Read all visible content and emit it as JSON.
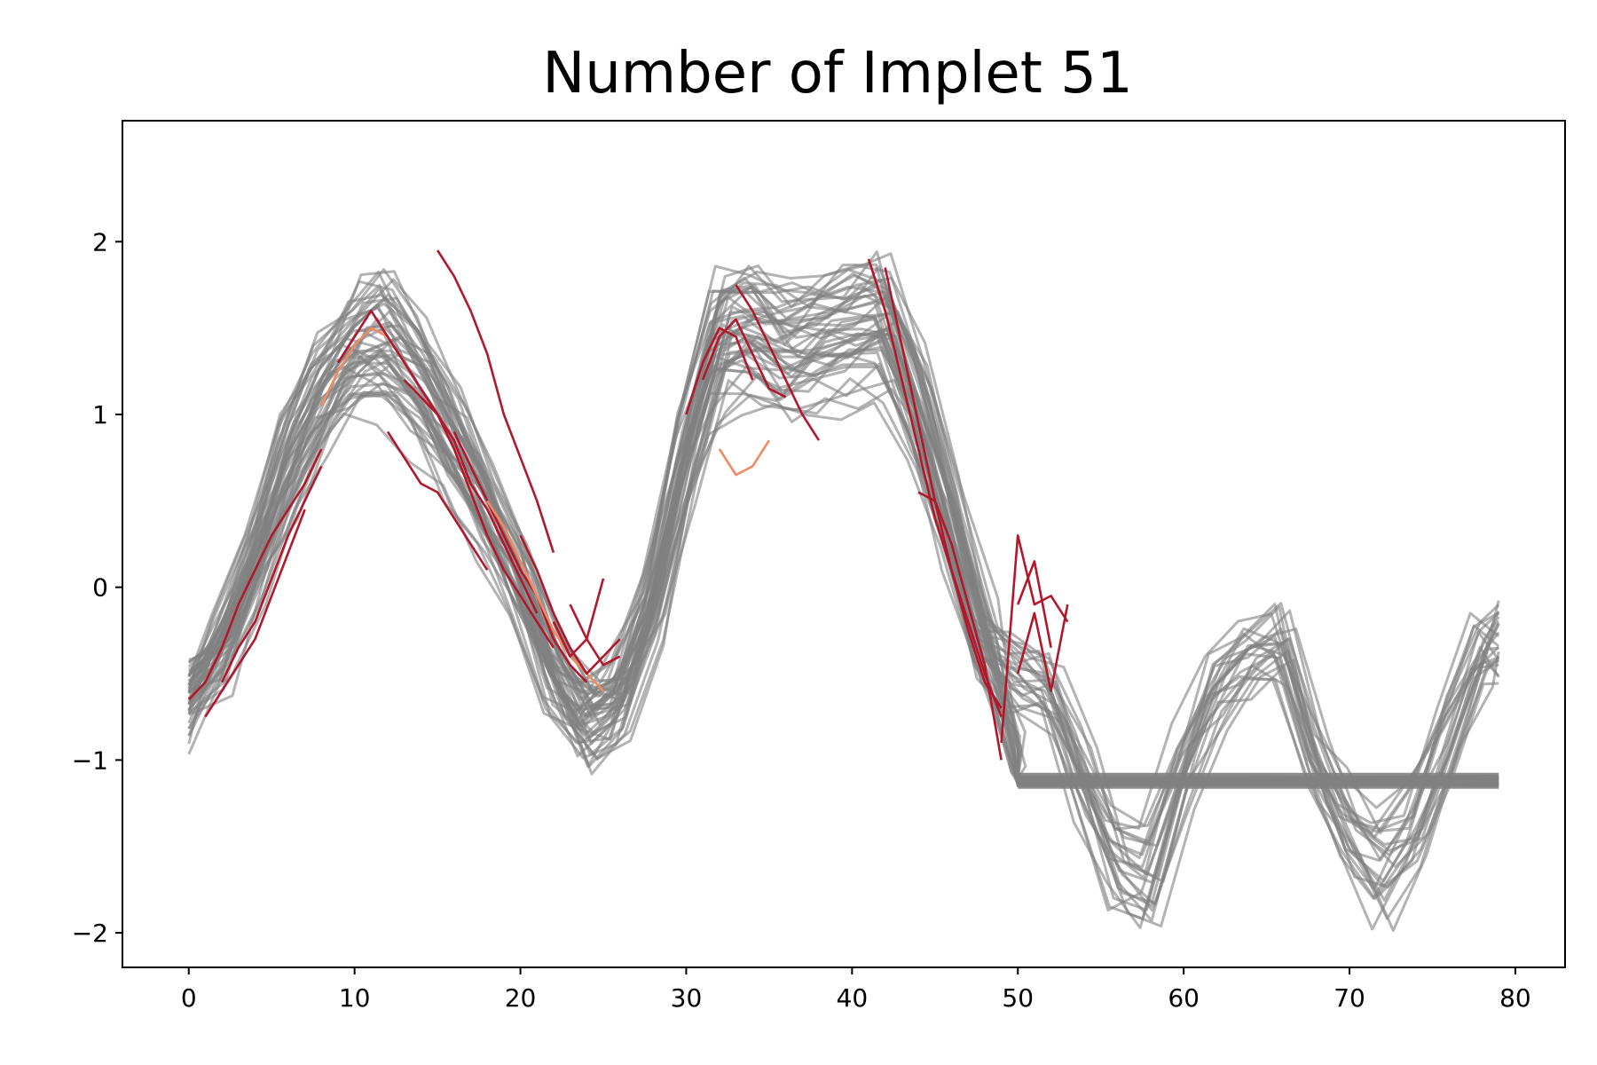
{
  "chart_data": {
    "type": "line",
    "title": "Number of Implet 51",
    "xlabel": "",
    "ylabel": "",
    "xlim": [
      -4,
      83
    ],
    "ylim": [
      -2.2,
      2.7
    ],
    "x_ticks": [
      0,
      10,
      20,
      30,
      40,
      50,
      60,
      70,
      80
    ],
    "y_ticks": [
      -2,
      -1,
      0,
      1,
      2
    ],
    "grid": false,
    "legend": "none",
    "colors": {
      "series": "#808080",
      "highlight": "#b2182b",
      "highlight_light": "#ef8a62",
      "axis": "#000000"
    },
    "background_series": {
      "description_count": 48,
      "x": [
        0,
        2,
        4,
        6,
        8,
        10,
        12,
        14,
        16,
        18,
        20,
        22,
        24,
        26,
        28,
        30,
        32,
        34,
        36,
        38,
        40,
        42,
        44,
        46,
        48,
        50,
        52,
        54,
        56,
        58,
        60,
        62,
        64,
        66,
        68,
        70,
        72,
        74,
        76,
        78,
        79
      ],
      "mean": [
        -0.6,
        -0.35,
        0.1,
        0.65,
        1.05,
        1.3,
        1.35,
        1.15,
        0.8,
        0.45,
        0.05,
        -0.45,
        -0.75,
        -0.6,
        -0.1,
        0.7,
        1.35,
        1.4,
        1.3,
        1.35,
        1.4,
        1.45,
        1.0,
        0.35,
        -0.3,
        -0.45,
        -0.55,
        -1.0,
        -1.45,
        -1.55,
        -1.0,
        -0.55,
        -0.35,
        -0.3,
        -0.9,
        -1.3,
        -1.5,
        -1.3,
        -0.8,
        -0.35,
        -0.3
      ]
    },
    "flat_segment": {
      "x_start": 50,
      "x_end": 79,
      "y": -1.12
    },
    "highlight_segments": [
      {
        "x": [
          0,
          1,
          2,
          3,
          4,
          5,
          6,
          7,
          8
        ],
        "y": [
          -0.65,
          -0.55,
          -0.35,
          -0.1,
          0.1,
          0.3,
          0.45,
          0.6,
          0.8
        ]
      },
      {
        "x": [
          1,
          2,
          3,
          4,
          5,
          6,
          7
        ],
        "y": [
          -0.75,
          -0.6,
          -0.45,
          -0.3,
          -0.05,
          0.2,
          0.45
        ]
      },
      {
        "x": [
          2,
          3,
          4,
          5,
          6,
          7,
          8
        ],
        "y": [
          -0.55,
          -0.35,
          -0.2,
          0.05,
          0.3,
          0.5,
          0.7
        ]
      },
      {
        "x": [
          8,
          9,
          10,
          11,
          12,
          13
        ],
        "y": [
          1.05,
          1.25,
          1.4,
          1.5,
          1.45,
          1.3
        ]
      },
      {
        "x": [
          9,
          10,
          11,
          12,
          13,
          14,
          15,
          16
        ],
        "y": [
          1.3,
          1.45,
          1.6,
          1.45,
          1.3,
          1.15,
          1.0,
          0.85
        ]
      },
      {
        "x": [
          13,
          14,
          15,
          16,
          17,
          18,
          19,
          20,
          21,
          22
        ],
        "y": [
          1.2,
          1.1,
          1.0,
          0.8,
          0.55,
          0.3,
          0.1,
          -0.05,
          -0.2,
          -0.35
        ]
      },
      {
        "x": [
          14,
          15,
          16,
          17,
          18,
          19,
          20,
          21
        ],
        "y": [
          1.15,
          1.0,
          0.85,
          0.6,
          0.45,
          0.25,
          0.05,
          -0.15
        ]
      },
      {
        "x": [
          15,
          16,
          17,
          18,
          19,
          20,
          21,
          22
        ],
        "y": [
          1.95,
          1.8,
          1.6,
          1.35,
          1.0,
          0.75,
          0.5,
          0.2
        ]
      },
      {
        "x": [
          12,
          13,
          14,
          15,
          16,
          17,
          18
        ],
        "y": [
          0.9,
          0.75,
          0.6,
          0.55,
          0.4,
          0.25,
          0.1
        ]
      },
      {
        "x": [
          16,
          17,
          18,
          19,
          20,
          21,
          22,
          23,
          24
        ],
        "y": [
          0.9,
          0.7,
          0.5,
          0.3,
          0.1,
          -0.05,
          -0.3,
          -0.45,
          -0.55
        ]
      },
      {
        "x": [
          18,
          19,
          20,
          21,
          22,
          23,
          24,
          25
        ],
        "y": [
          0.5,
          0.35,
          0.15,
          -0.05,
          -0.25,
          -0.4,
          -0.5,
          -0.6
        ]
      },
      {
        "x": [
          20,
          21,
          22,
          23,
          24,
          25,
          26
        ],
        "y": [
          0.3,
          0.1,
          -0.15,
          -0.35,
          -0.5,
          -0.4,
          -0.3
        ]
      },
      {
        "x": [
          22,
          23,
          24,
          25,
          26
        ],
        "y": [
          -0.2,
          -0.4,
          -0.3,
          -0.45,
          -0.4
        ]
      },
      {
        "x": [
          23,
          24,
          25
        ],
        "y": [
          -0.1,
          -0.3,
          0.05
        ]
      },
      {
        "x": [
          30,
          31,
          32,
          33,
          34
        ],
        "y": [
          1.0,
          1.3,
          1.5,
          1.45,
          1.2
        ]
      },
      {
        "x": [
          31,
          32,
          33,
          34,
          35,
          36
        ],
        "y": [
          1.2,
          1.45,
          1.55,
          1.35,
          1.15,
          1.1
        ]
      },
      {
        "x": [
          33,
          34,
          35,
          36,
          37,
          38
        ],
        "y": [
          1.75,
          1.6,
          1.4,
          1.2,
          1.0,
          0.85
        ]
      },
      {
        "x": [
          32,
          33,
          34,
          35
        ],
        "y": [
          0.8,
          0.65,
          0.7,
          0.85
        ]
      },
      {
        "x": [
          41,
          42,
          43,
          44,
          45,
          46,
          47,
          48,
          49
        ],
        "y": [
          1.9,
          1.6,
          1.2,
          0.8,
          0.4,
          0.1,
          -0.2,
          -0.5,
          -0.75
        ]
      },
      {
        "x": [
          42,
          43,
          44,
          45,
          46,
          47,
          48,
          49
        ],
        "y": [
          1.85,
          1.4,
          0.95,
          0.5,
          0.25,
          -0.1,
          -0.45,
          -1.0
        ]
      },
      {
        "x": [
          44,
          45,
          46,
          47,
          48,
          49
        ],
        "y": [
          0.55,
          0.5,
          0.1,
          -0.25,
          -0.55,
          -0.7
        ]
      },
      {
        "x": [
          49,
          50,
          51,
          52,
          53
        ],
        "y": [
          -0.9,
          0.3,
          -0.1,
          -0.05,
          -0.2
        ]
      },
      {
        "x": [
          50,
          51,
          52
        ],
        "y": [
          -0.1,
          0.15,
          -0.35
        ]
      },
      {
        "x": [
          50,
          51,
          52,
          53
        ],
        "y": [
          -0.5,
          -0.15,
          -0.6,
          -0.1
        ]
      }
    ]
  }
}
